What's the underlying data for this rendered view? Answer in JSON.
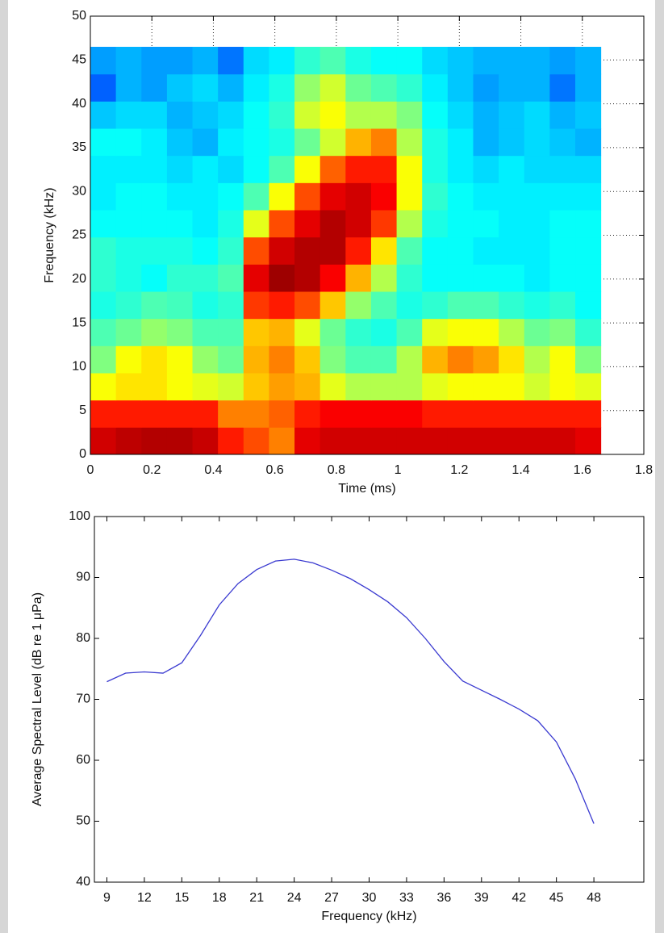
{
  "chart_data": [
    {
      "type": "heatmap",
      "xlabel": "Time (ms)",
      "ylabel": "Frequency (kHz)",
      "x": [
        0.0415,
        0.1245,
        0.2075,
        0.2905,
        0.3735,
        0.4565,
        0.5395,
        0.6225,
        0.7055,
        0.7885,
        0.8715,
        0.9545,
        1.0375,
        1.1205,
        1.2035,
        1.2865,
        1.3695,
        1.4525,
        1.5355,
        1.6185
      ],
      "y": [
        1.55,
        4.65,
        7.75,
        10.85,
        13.95,
        17.05,
        20.15,
        23.25,
        26.35,
        29.45,
        32.55,
        35.65,
        38.75,
        41.85,
        44.95
      ],
      "values": [
        [
          92,
          94,
          95,
          95,
          93,
          85,
          80,
          75,
          90,
          92,
          92,
          92,
          92,
          92,
          92,
          92,
          92,
          92,
          92,
          90
        ],
        [
          85,
          85,
          85,
          85,
          85,
          75,
          75,
          78,
          85,
          88,
          88,
          88,
          88,
          85,
          85,
          85,
          85,
          85,
          85,
          85
        ],
        [
          62,
          65,
          65,
          62,
          60,
          58,
          68,
          72,
          70,
          60,
          55,
          55,
          55,
          60,
          62,
          62,
          62,
          58,
          62,
          60
        ],
        [
          50,
          62,
          65,
          62,
          52,
          48,
          70,
          75,
          68,
          50,
          45,
          45,
          55,
          70,
          75,
          72,
          65,
          55,
          62,
          50
        ],
        [
          45,
          48,
          52,
          50,
          45,
          45,
          68,
          70,
          60,
          48,
          42,
          40,
          45,
          60,
          62,
          62,
          55,
          48,
          50,
          42
        ],
        [
          40,
          42,
          45,
          44,
          40,
          42,
          82,
          85,
          80,
          68,
          52,
          45,
          40,
          42,
          45,
          45,
          42,
          40,
          42,
          38
        ],
        [
          42,
          40,
          38,
          42,
          42,
          45,
          90,
          97,
          95,
          88,
          70,
          55,
          42,
          38,
          38,
          38,
          38,
          36,
          38,
          38
        ],
        [
          42,
          40,
          40,
          40,
          38,
          42,
          80,
          92,
          95,
          95,
          85,
          65,
          45,
          38,
          38,
          36,
          36,
          36,
          38,
          38
        ],
        [
          38,
          38,
          38,
          38,
          36,
          40,
          60,
          80,
          90,
          95,
          92,
          82,
          55,
          40,
          38,
          38,
          36,
          36,
          38,
          38
        ],
        [
          36,
          38,
          38,
          36,
          36,
          38,
          45,
          62,
          80,
          90,
          92,
          88,
          62,
          42,
          38,
          36,
          36,
          36,
          36,
          36
        ],
        [
          36,
          36,
          36,
          34,
          36,
          34,
          38,
          45,
          62,
          78,
          85,
          85,
          62,
          40,
          36,
          34,
          36,
          34,
          34,
          34
        ],
        [
          38,
          38,
          36,
          32,
          30,
          36,
          38,
          40,
          48,
          58,
          70,
          75,
          55,
          40,
          36,
          30,
          32,
          34,
          32,
          30
        ],
        [
          32,
          34,
          34,
          30,
          32,
          34,
          38,
          42,
          58,
          62,
          55,
          55,
          50,
          38,
          34,
          30,
          32,
          34,
          30,
          32
        ],
        [
          22,
          30,
          28,
          32,
          34,
          30,
          36,
          40,
          52,
          58,
          48,
          45,
          42,
          36,
          32,
          28,
          30,
          30,
          24,
          30
        ],
        [
          28,
          30,
          28,
          28,
          30,
          24,
          34,
          36,
          42,
          45,
          40,
          38,
          38,
          34,
          32,
          30,
          30,
          30,
          28,
          30
        ]
      ],
      "colormap": "jet",
      "clim": [
        0,
        100
      ],
      "xlim": [
        0,
        1.8
      ],
      "xticks": [
        0,
        0.2,
        0.4,
        0.6,
        0.8,
        1,
        1.2,
        1.4,
        1.6,
        1.8
      ],
      "ylim": [
        0,
        50
      ],
      "yticks": [
        0,
        5,
        10,
        15,
        20,
        25,
        30,
        35,
        40,
        45,
        50
      ],
      "grid": true
    },
    {
      "type": "line",
      "xlabel": "Frequency (kHz)",
      "ylabel": "Average Spectral Level (dB re 1 μPa)",
      "x": [
        9,
        10.5,
        12,
        13.5,
        15,
        16.5,
        18,
        19.5,
        21,
        22.5,
        24,
        25.5,
        27,
        28.5,
        30,
        31.5,
        33,
        34.5,
        36,
        37.5,
        39,
        40.5,
        42,
        43.5,
        45,
        46.5,
        48
      ],
      "series": [
        {
          "color": "#3a3ad0",
          "values": [
            72.9,
            74.3,
            74.5,
            74.3,
            76,
            80.5,
            85.5,
            89,
            91.3,
            92.7,
            93,
            92.4,
            91.2,
            89.8,
            88,
            86,
            83.4,
            80,
            76.2,
            73,
            71.5,
            70,
            68.4,
            66.5,
            63,
            57,
            49.6
          ]
        }
      ],
      "xlim": [
        8,
        52
      ],
      "xticks": [
        9,
        12,
        15,
        18,
        21,
        24,
        27,
        30,
        33,
        36,
        39,
        42,
        45,
        48
      ],
      "ylim": [
        40,
        100
      ],
      "yticks": [
        40,
        50,
        60,
        70,
        80,
        90,
        100
      ],
      "grid": false
    }
  ]
}
